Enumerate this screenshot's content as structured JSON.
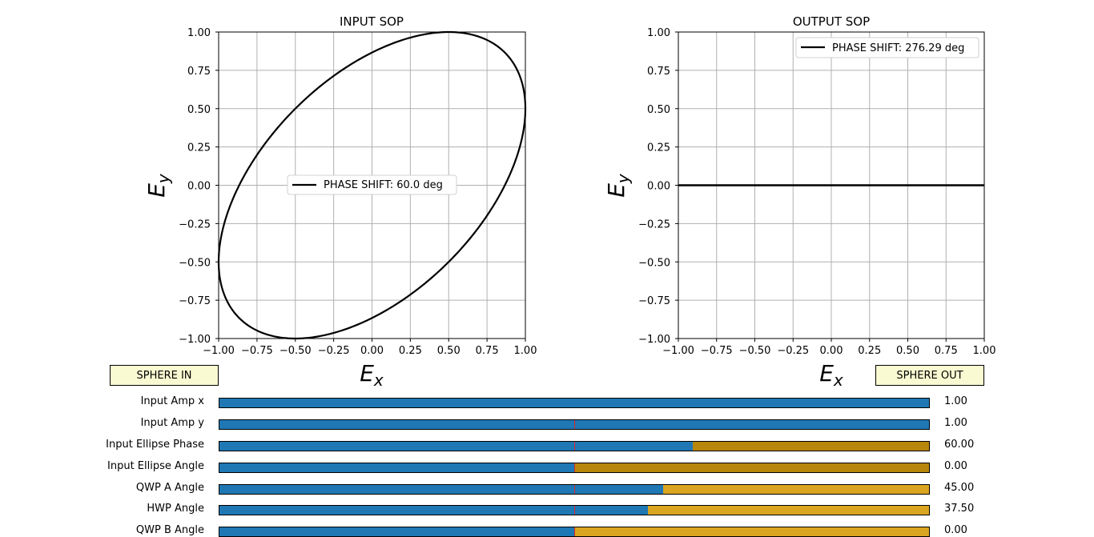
{
  "plots": [
    {
      "title": "INPUT SOP",
      "xlabel": "E_x",
      "ylabel": "E_y",
      "xlim": [
        -1.0,
        1.0
      ],
      "ylim": [
        -1.0,
        1.0
      ],
      "ticks": [
        "−1.00",
        "−0.75",
        "−0.50",
        "−0.25",
        "0.00",
        "0.25",
        "0.50",
        "0.75",
        "1.00"
      ],
      "grid": true,
      "legend": {
        "label": "PHASE SHIFT: 60.0 deg",
        "placement": "center"
      },
      "curve": {
        "type": "ellipse",
        "amp_x": 1.0,
        "amp_y": 1.0,
        "phase_deg": 60.0
      }
    },
    {
      "title": "OUTPUT SOP",
      "xlabel": "E_x",
      "ylabel": "E_y",
      "xlim": [
        -1.0,
        1.0
      ],
      "ylim": [
        -1.0,
        1.0
      ],
      "ticks": [
        "−1.00",
        "−0.75",
        "−0.50",
        "−0.25",
        "0.00",
        "0.25",
        "0.50",
        "0.75",
        "1.00"
      ],
      "grid": true,
      "legend": {
        "label": "PHASE SHIFT: 276.29 deg",
        "placement": "upper-right"
      },
      "curve": {
        "type": "line",
        "y": 0.0
      }
    }
  ],
  "buttons": {
    "sphere_in": "SPHERE IN",
    "sphere_out": "SPHERE OUT"
  },
  "sliders": [
    {
      "label": "Input Amp x",
      "value_text": "1.00",
      "fill_fraction": 1.0,
      "init_fraction": null,
      "rest_color": "#ffffff"
    },
    {
      "label": "Input Amp y",
      "value_text": "1.00",
      "fill_fraction": 1.0,
      "init_fraction": 0.5,
      "rest_color": "#ffffff"
    },
    {
      "label": "Input Ellipse Phase",
      "value_text": "60.00",
      "fill_fraction": 0.667,
      "init_fraction": 0.5,
      "rest_color": "#b8860b"
    },
    {
      "label": "Input Ellipse Angle",
      "value_text": "0.00",
      "fill_fraction": 0.5,
      "init_fraction": 0.5,
      "rest_color": "#b8860b"
    },
    {
      "label": "QWP A Angle",
      "value_text": "45.00",
      "fill_fraction": 0.625,
      "init_fraction": 0.5,
      "rest_color": "#daa520"
    },
    {
      "label": "HWP Angle",
      "value_text": "37.50",
      "fill_fraction": 0.604,
      "init_fraction": 0.5,
      "rest_color": "#daa520"
    },
    {
      "label": "QWP B Angle",
      "value_text": "0.00",
      "fill_fraction": 0.5,
      "init_fraction": 0.5,
      "rest_color": "#daa520"
    }
  ],
  "colors": {
    "slider_fill": "#1f77b4",
    "slider_init_marker": "#d62728",
    "button_bg": "#fafad2",
    "grid": "#b0b0b0"
  }
}
